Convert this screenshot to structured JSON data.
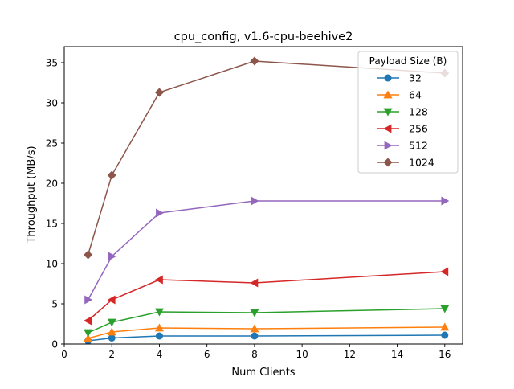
{
  "chart_data": {
    "type": "line",
    "title": "cpu_config, v1.6-cpu-beehive2",
    "xlabel": "Num Clients",
    "ylabel": "Throughput (MB/s)",
    "xlim": [
      0,
      16.75
    ],
    "ylim": [
      0,
      37
    ],
    "xticks": [
      0,
      2,
      4,
      6,
      8,
      10,
      12,
      14,
      16
    ],
    "yticks": [
      0,
      5,
      10,
      15,
      20,
      25,
      30,
      35
    ],
    "grid": false,
    "legend": {
      "title": "Payload Size (B)",
      "placement": "top-right"
    },
    "x": [
      1,
      2,
      4,
      8,
      16
    ],
    "series": [
      {
        "name": "32",
        "color": "#1f77b4",
        "marker": "circle",
        "values": [
          0.4,
          0.75,
          1.0,
          1.0,
          1.1
        ]
      },
      {
        "name": "64",
        "color": "#ff7f0e",
        "marker": "triangle-up",
        "values": [
          0.7,
          1.5,
          2.0,
          1.9,
          2.1
        ]
      },
      {
        "name": "128",
        "color": "#2ca02c",
        "marker": "triangle-down",
        "values": [
          1.4,
          2.7,
          4.0,
          3.9,
          4.4
        ]
      },
      {
        "name": "256",
        "color": "#d62728",
        "marker": "triangle-left",
        "values": [
          2.9,
          5.5,
          8.0,
          7.6,
          9.0
        ]
      },
      {
        "name": "512",
        "color": "#9467bd",
        "marker": "triangle-right",
        "values": [
          5.5,
          10.9,
          16.3,
          17.8,
          17.8
        ]
      },
      {
        "name": "1024",
        "color": "#8c564b",
        "marker": "diamond",
        "values": [
          11.1,
          21.0,
          31.3,
          35.2,
          33.7
        ]
      }
    ]
  }
}
